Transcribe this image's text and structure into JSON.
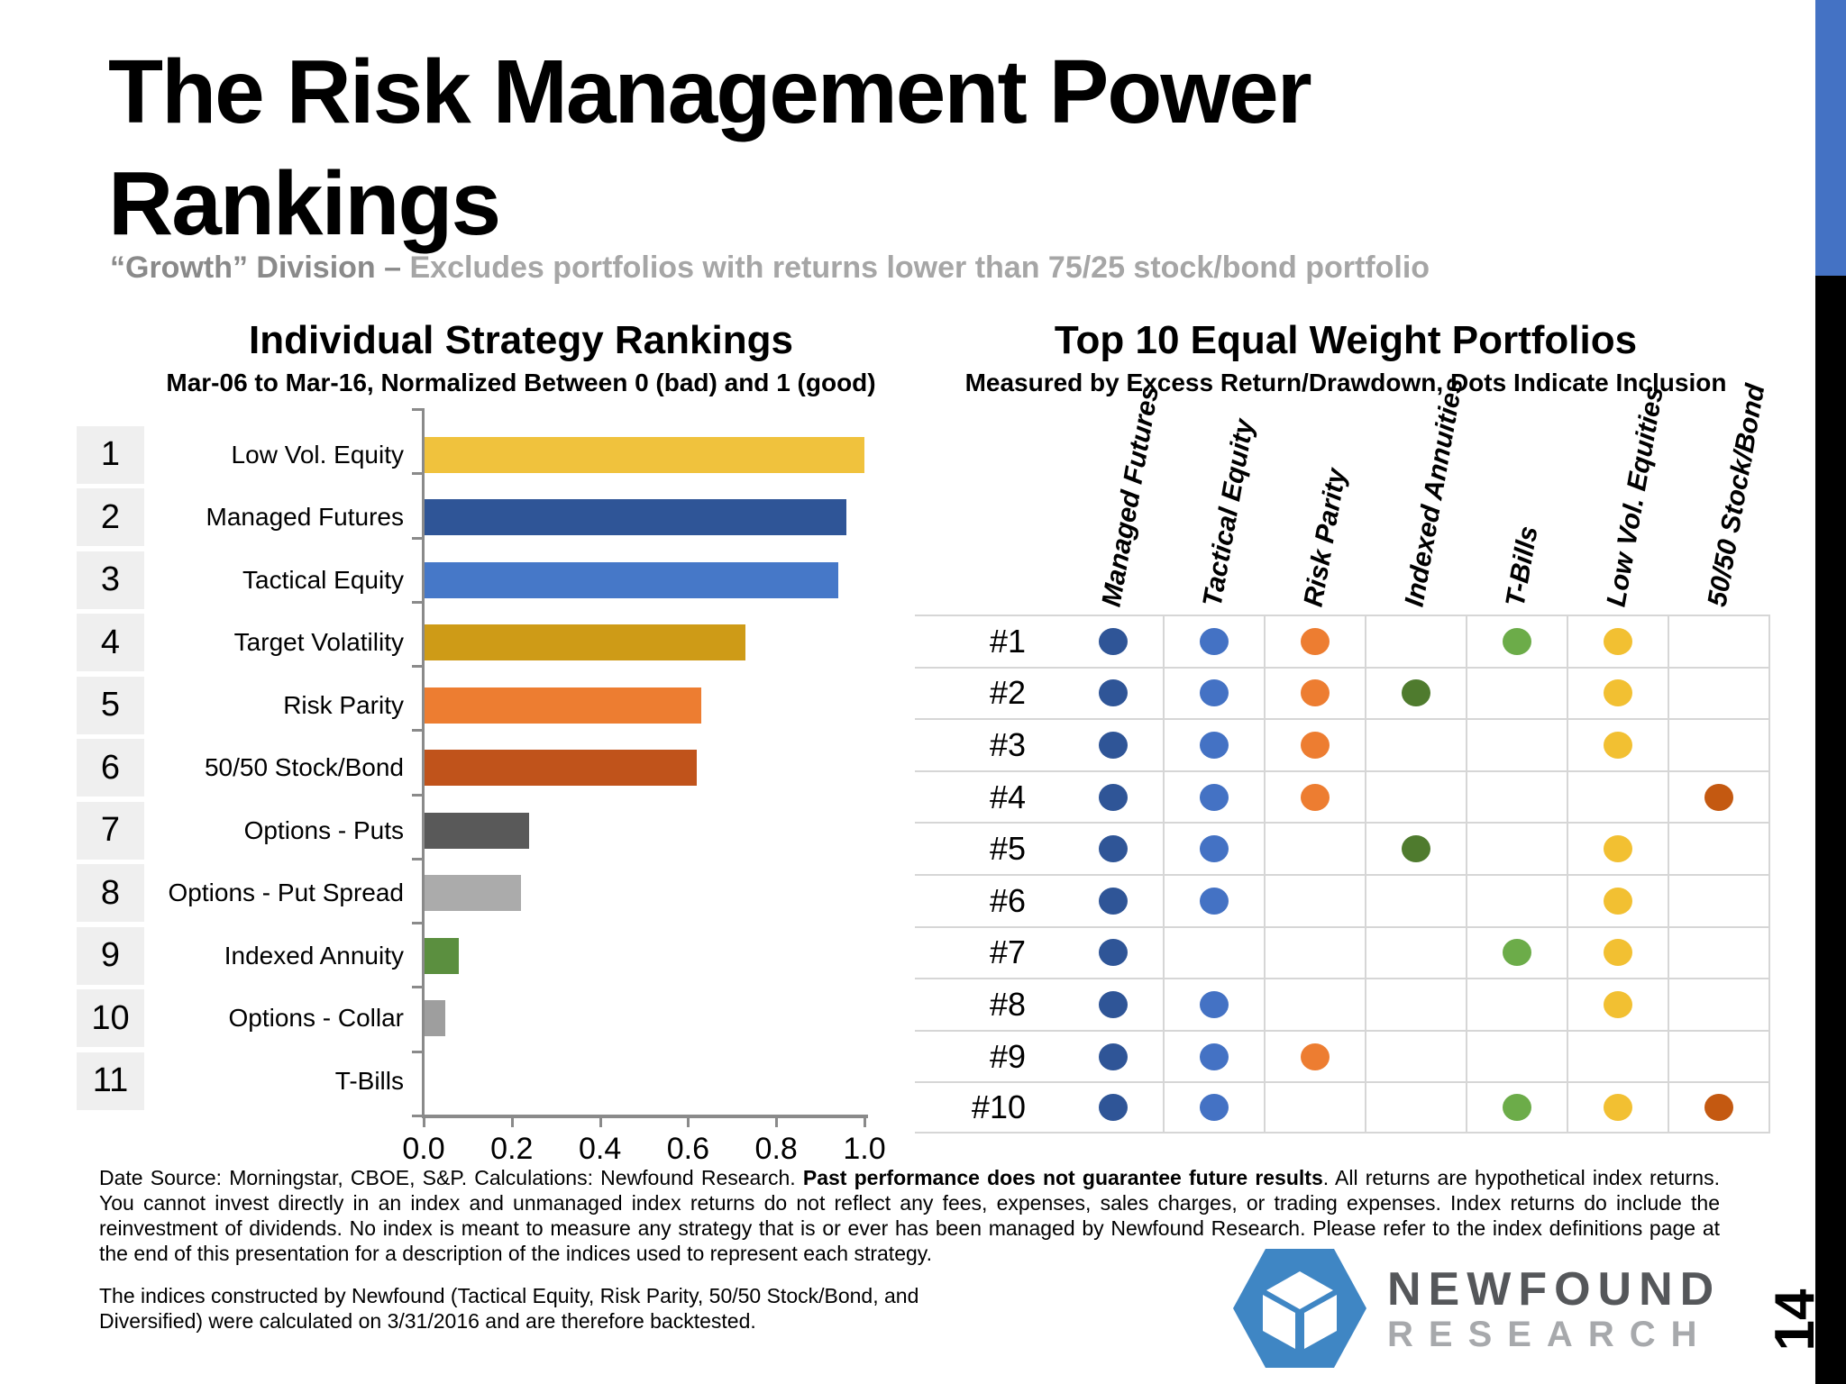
{
  "slide": {
    "title_line1": "The Risk Management Power",
    "title_line2": "Rankings",
    "subtitle_strong": "“Growth” Division – ",
    "subtitle_rest": "Excludes portfolios with returns lower than 75/25 stock/bond portfolio",
    "page_number": "14"
  },
  "chart_data": [
    {
      "type": "bar",
      "orientation": "horizontal",
      "title": "Individual Strategy Rankings",
      "subtitle": "Mar-06 to Mar-16, Normalized Between 0 (bad) and 1 (good)",
      "categories": [
        "Low Vol. Equity",
        "Managed Futures",
        "Tactical Equity",
        "Target Volatility",
        "Risk Parity",
        "50/50 Stock/Bond",
        "Options - Puts",
        "Options - Put Spread",
        "Indexed Annuity",
        "Options - Collar",
        "T-Bills"
      ],
      "ranks": [
        1,
        2,
        3,
        4,
        5,
        6,
        7,
        8,
        9,
        10,
        11
      ],
      "values": [
        1.0,
        0.96,
        0.94,
        0.73,
        0.63,
        0.62,
        0.24,
        0.22,
        0.08,
        0.05,
        0.0
      ],
      "bar_colors": [
        "#F0C23D",
        "#2F5597",
        "#4678C8",
        "#CE9B17",
        "#ED7D31",
        "#C0531B",
        "#595959",
        "#ABABAB",
        "#5B8F3F",
        "#9E9E9E",
        "#70AD47"
      ],
      "xlabel": "",
      "xlim": [
        0,
        1
      ],
      "xticks": [
        "0.0",
        "0.2",
        "0.4",
        "0.6",
        "0.8",
        "1.0"
      ],
      "grid": false
    },
    {
      "type": "heatmap",
      "subtype": "dot-inclusion-matrix",
      "title": "Top 10 Equal Weight Portfolios",
      "subtitle": "Measured by Excess Return/Drawdown, Dots Indicate Inclusion",
      "columns": [
        {
          "label": "Managed Futures",
          "color": "#2F5597"
        },
        {
          "label": "Tactical Equity",
          "color": "#4472C4"
        },
        {
          "label": "Risk Parity",
          "color": "#ED7D31"
        },
        {
          "label": "Indexed Annuities",
          "color": "#4F7B2E"
        },
        {
          "label": "T-Bills",
          "color": "#6CAC49"
        },
        {
          "label": "Low Vol. Equities",
          "color": "#F2C032"
        },
        {
          "label": "50/50 Stock/Bond",
          "color": "#C45911"
        }
      ],
      "rows": [
        {
          "label": "#1",
          "included": [
            1,
            1,
            1,
            0,
            1,
            1,
            0
          ]
        },
        {
          "label": "#2",
          "included": [
            1,
            1,
            1,
            1,
            0,
            1,
            0
          ]
        },
        {
          "label": "#3",
          "included": [
            1,
            1,
            1,
            0,
            0,
            1,
            0
          ]
        },
        {
          "label": "#4",
          "included": [
            1,
            1,
            1,
            0,
            0,
            0,
            1
          ]
        },
        {
          "label": "#5",
          "included": [
            1,
            1,
            0,
            1,
            0,
            1,
            0
          ]
        },
        {
          "label": "#6",
          "included": [
            1,
            1,
            0,
            0,
            0,
            1,
            0
          ]
        },
        {
          "label": "#7",
          "included": [
            1,
            0,
            0,
            0,
            1,
            1,
            0
          ]
        },
        {
          "label": "#8",
          "included": [
            1,
            1,
            0,
            0,
            0,
            1,
            0
          ]
        },
        {
          "label": "#9",
          "included": [
            1,
            1,
            1,
            0,
            0,
            0,
            0
          ]
        },
        {
          "label": "#10",
          "included": [
            1,
            1,
            0,
            0,
            1,
            1,
            1
          ]
        }
      ]
    }
  ],
  "footer": {
    "disclaimer_pre": "Date Source: Morningstar, CBOE, S&P. Calculations: Newfound Research. ",
    "disclaimer_bold": "Past performance does not guarantee future results",
    "disclaimer_post": ". All returns are hypothetical index returns. You cannot invest directly in an index and unmanaged index returns do not reflect any fees, expenses, sales charges, or trading expenses. Index returns do include the reinvestment of dividends. No index is meant to measure any strategy that is or ever has been managed by Newfound Research. Please refer to the index definitions page at the end of this presentation for a description of the indices used to represent each strategy.",
    "note": "The indices constructed by Newfound (Tactical Equity, Risk Parity, 50/50 Stock/Bond, and Diversified) were calculated on 3/31/2016 and are therefore backtested.",
    "logo_line1": "NEWFOUND",
    "logo_line2": "RESEARCH",
    "accent_color": "#4472C4"
  }
}
